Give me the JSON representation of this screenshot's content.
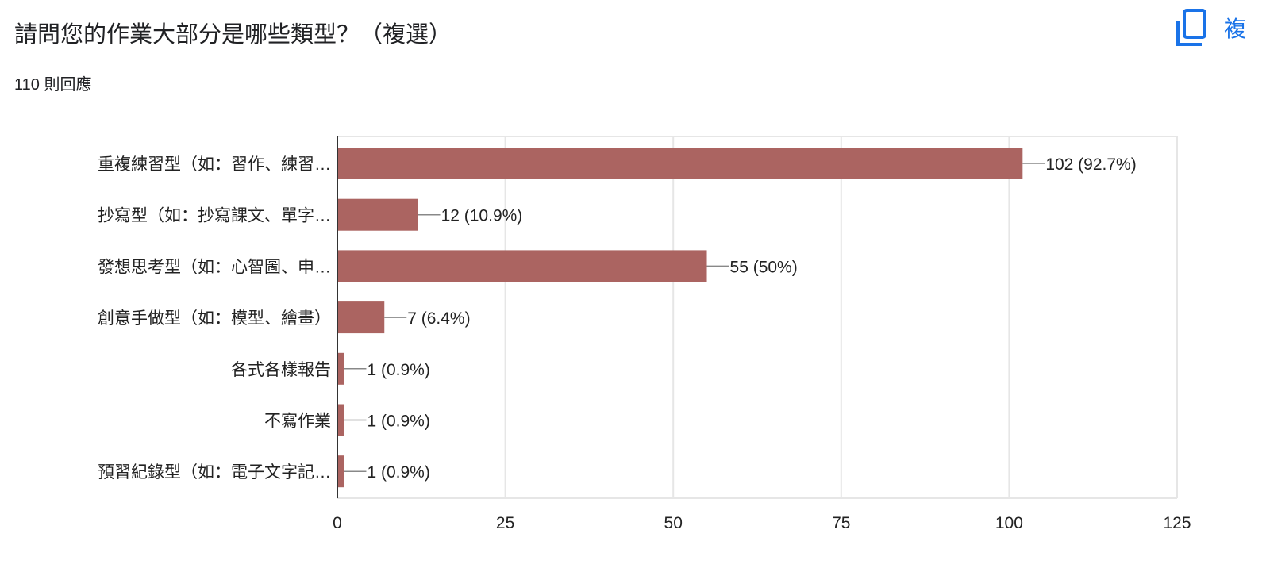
{
  "question": {
    "title": "請問您的作業大部分是哪些類型？（複選）",
    "responses": "110 則回應"
  },
  "copy_button": {
    "label": "複",
    "icon": "copy-icon",
    "color": "#1a73e8"
  },
  "chart_data": {
    "type": "bar",
    "orientation": "horizontal",
    "categories": [
      "重複練習型（如：習作、練習…",
      "抄寫型（如：抄寫課文、單字…",
      "發想思考型（如：心智圖、申…",
      "創意手做型（如：模型、繪畫）",
      "各式各樣報告",
      "不寫作業",
      "預習紀錄型（如：電子文字記…"
    ],
    "values": [
      102,
      12,
      55,
      7,
      1,
      1,
      1
    ],
    "data_labels": [
      "102 (92.7%)",
      "12 (10.9%)",
      "55 (50%)",
      "7 (6.4%)",
      "1 (0.9%)",
      "1 (0.9%)",
      "1 (0.9%)"
    ],
    "xlim": [
      0,
      125
    ],
    "xticks": [
      "0",
      "25",
      "50",
      "75",
      "100",
      "125"
    ],
    "grid": true,
    "bar_color": "#ab6461"
  }
}
